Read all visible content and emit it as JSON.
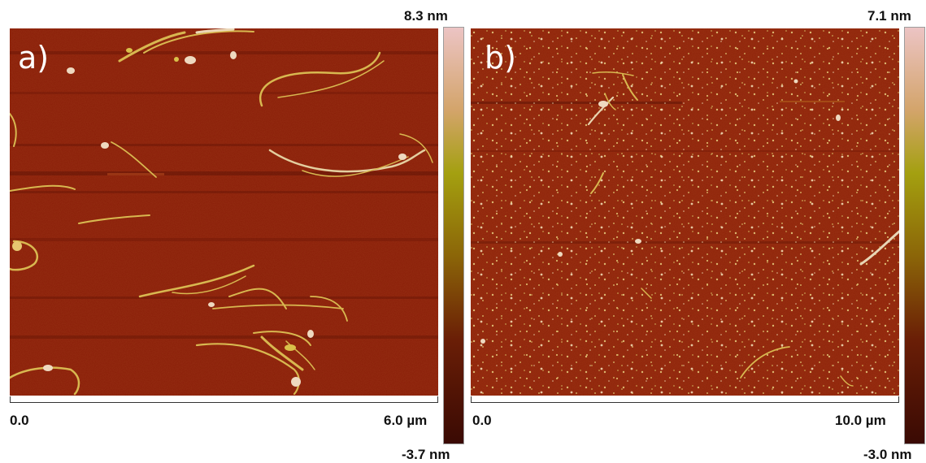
{
  "panels": [
    {
      "label": "a)",
      "colorbar": {
        "max": "8.3 nm",
        "min": "-3.7 nm"
      },
      "scale": {
        "start": "0.0",
        "end": "6.0 µm"
      }
    },
    {
      "label": "b)",
      "colorbar": {
        "max": "7.1 nm",
        "min": "-3.0 nm"
      },
      "scale": {
        "start": "0.0",
        "end": "10.0 µm"
      }
    }
  ],
  "colors": {
    "substrate": "#8a1d08",
    "fiber": "#e0c060",
    "fiber_bright": "#f0e0b8",
    "colorbar_stops": [
      "#ecc4c4",
      "#d3a46a",
      "#a4a010",
      "#8b6508",
      "#6a1e06",
      "#3a0a04"
    ]
  }
}
